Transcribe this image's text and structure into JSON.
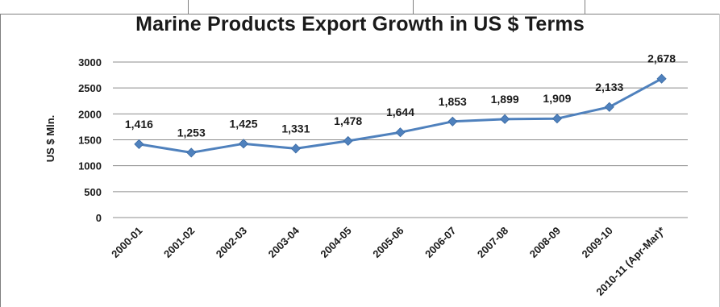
{
  "chart_data": {
    "type": "line",
    "title": "Marine Products Export Growth in US $ Terms",
    "xlabel": "",
    "ylabel": "US $ Mln.",
    "categories": [
      "2000-01",
      "2001-02",
      "2002-03",
      "2003-04",
      "2004-05",
      "2005-06",
      "2006-07",
      "2007-08",
      "2008-09",
      "2009-10",
      "2010-11 (Apr-Mar)*"
    ],
    "series": [
      {
        "values": [
          1416,
          1253,
          1425,
          1331,
          1478,
          1644,
          1853,
          1899,
          1909,
          2133,
          2678
        ],
        "labels": [
          "1,416",
          "1,253",
          "1,425",
          "1,331",
          "1,478",
          "1,644",
          "1,853",
          "1,899",
          "1,909",
          "2,133",
          "2,678"
        ],
        "color": "#4f81bd"
      }
    ],
    "ylim": [
      0,
      3000
    ],
    "yticks": [
      0,
      500,
      1000,
      1500,
      2000,
      2500,
      3000
    ],
    "grid": true,
    "legend": "none",
    "gridline_color": "#8c8c8c"
  }
}
